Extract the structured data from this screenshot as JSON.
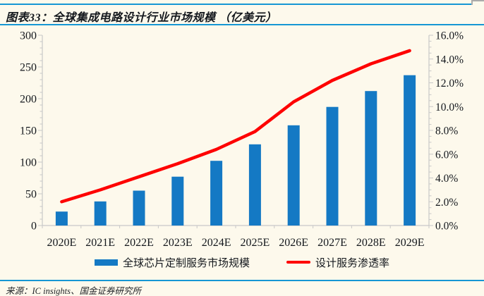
{
  "header": {
    "title": "图表33：全球集成电路设计行业市场规模 （亿美元）"
  },
  "footer": {
    "source": "来源：IC insights、国金证券研究所"
  },
  "colors": {
    "background": "#FDF9EC",
    "rule_blue": "#1697D4",
    "bar_blue": "#1479C4",
    "line_red": "#FE0000",
    "axis_gray": "#C8C8C8",
    "text_dark": "#14181d"
  },
  "chart_data": {
    "type": "bar",
    "subtype": "bar+line combo, dual axis",
    "categories": [
      "2020E",
      "2021E",
      "2022E",
      "2023E",
      "2024E",
      "2025E",
      "2026E",
      "2027E",
      "2028E",
      "2029E"
    ],
    "series": [
      {
        "name": "全球芯片定制服务市场规模",
        "type": "bar",
        "axis": "left",
        "values": [
          22,
          38,
          55,
          77,
          102,
          128,
          158,
          187,
          212,
          237
        ]
      },
      {
        "name": "设计服务渗透率",
        "type": "line",
        "axis": "right",
        "values": [
          2.0,
          3.0,
          4.1,
          5.2,
          6.4,
          7.9,
          10.4,
          12.2,
          13.6,
          14.7
        ]
      }
    ],
    "left_axis": {
      "min": 0,
      "max": 300,
      "major_step": 50,
      "minor_step": 10,
      "tick_labels": [
        "0",
        "50",
        "100",
        "150",
        "200",
        "250",
        "300"
      ]
    },
    "right_axis": {
      "min": 0,
      "max": 16,
      "major_step": 2,
      "minor_step": 0.5,
      "tick_labels": [
        "0.0%",
        "2.0%",
        "4.0%",
        "6.0%",
        "8.0%",
        "10.0%",
        "12.0%",
        "14.0%",
        "16.0%"
      ]
    },
    "grid": false,
    "legend_position": "bottom",
    "title": "全球集成电路设计行业市场规模（亿美元）"
  }
}
